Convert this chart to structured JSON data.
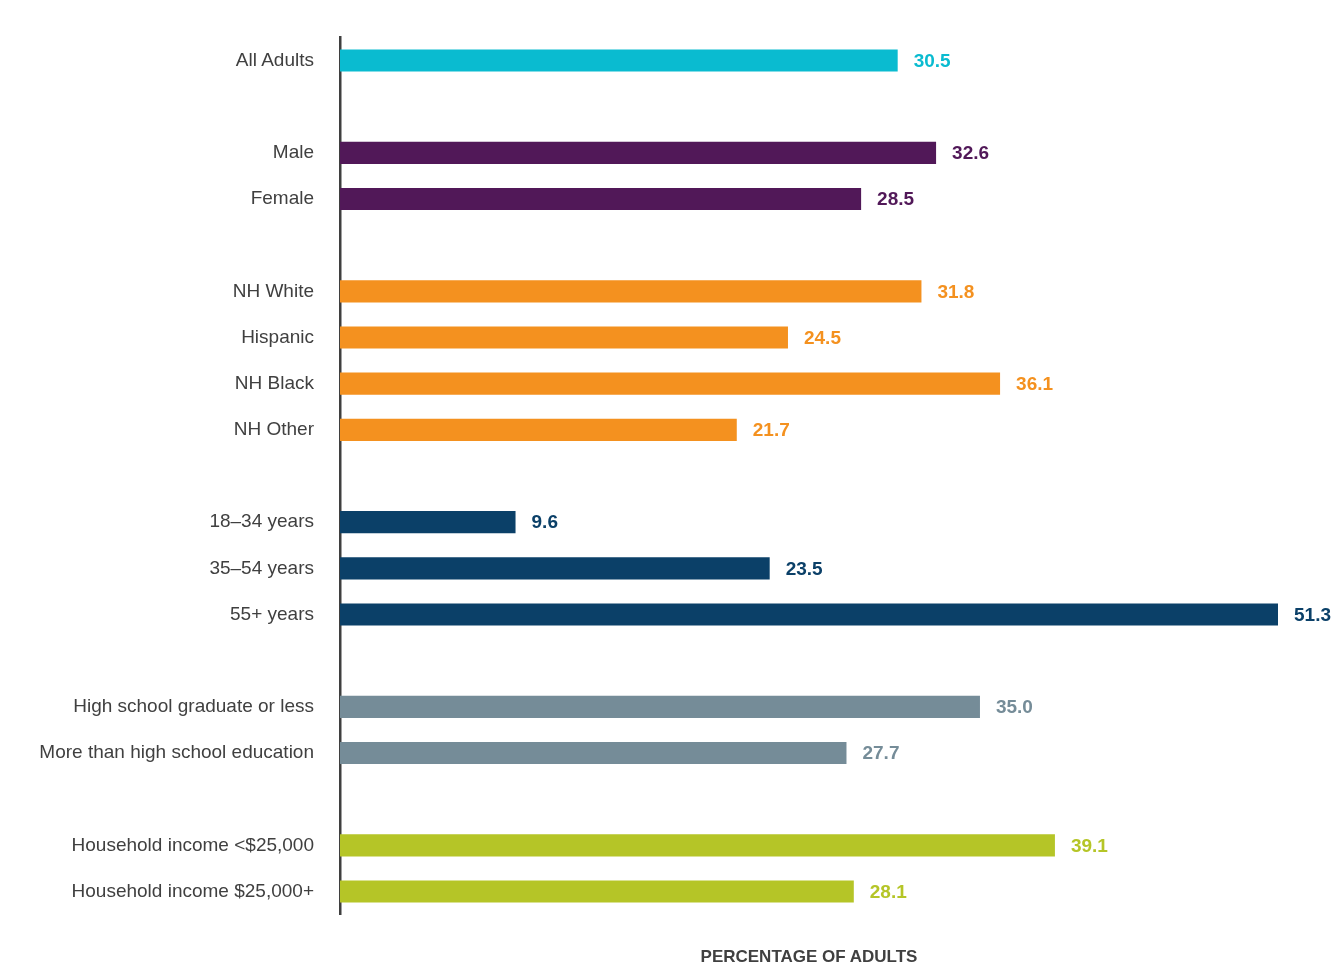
{
  "chart_data": {
    "type": "bar",
    "orientation": "horizontal",
    "xlabel": "PERCENTAGE OF ADULTS",
    "categories": [
      "All Adults",
      null,
      "Male",
      "Female",
      null,
      "NH White",
      "Hispanic",
      "NH Black",
      "NH Other",
      null,
      "18–34 years",
      "35–54 years",
      "55+ years",
      null,
      "High school graduate or less",
      "More than high school education",
      null,
      "Household income <$25,000",
      "Household income $25,000+"
    ],
    "values": [
      30.5,
      null,
      32.6,
      28.5,
      null,
      31.8,
      24.5,
      36.1,
      21.7,
      null,
      9.6,
      23.5,
      51.3,
      null,
      35.0,
      27.7,
      null,
      39.1,
      28.1
    ],
    "value_labels": [
      "30.5",
      null,
      "32.6",
      "28.5",
      null,
      "31.8",
      "24.5",
      "36.1",
      "21.7",
      null,
      "9.6",
      "23.5",
      "51.3",
      null,
      "35.0",
      "27.7",
      null,
      "39.1",
      "28.1"
    ],
    "colors": [
      "#0abbd0",
      null,
      "#511858",
      "#511858",
      null,
      "#f4911f",
      "#f4911f",
      "#f4911f",
      "#f4911f",
      null,
      "#0b4068",
      "#0b4068",
      "#0b4068",
      null,
      "#758c98",
      "#758c98",
      null,
      "#b5c527",
      "#b5c527"
    ],
    "tick_labels": "y"
  }
}
